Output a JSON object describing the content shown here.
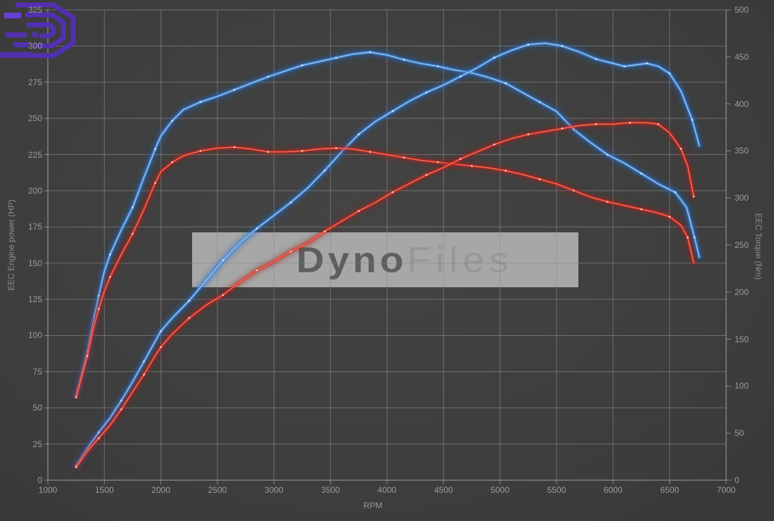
{
  "chart_data": {
    "type": "line",
    "title": "",
    "x": {
      "label": "RPM",
      "min": 1000,
      "max": 7000,
      "ticks": [
        1000,
        1500,
        2000,
        2500,
        3000,
        3500,
        4000,
        4500,
        5000,
        5500,
        6000,
        6500,
        7000
      ]
    },
    "y_left": {
      "label": "EEC Engine power (HP)",
      "min": 0,
      "max": 325,
      "ticks": [
        0,
        25,
        50,
        75,
        100,
        125,
        150,
        175,
        200,
        225,
        250,
        275,
        300,
        325
      ],
      "gridlines": true
    },
    "y_right": {
      "label": "EEC Torque (Nm)",
      "min": 0,
      "max": 500,
      "ticks": [
        0,
        50,
        100,
        150,
        200,
        250,
        300,
        350,
        400,
        450,
        500
      ],
      "gridlines": false
    },
    "legend_position": "none",
    "series": [
      {
        "name": "power-blue",
        "axis": "left",
        "unit": "HP",
        "color": "#3c87dd",
        "core": "#8fc0f2",
        "glow": "#1d66c4",
        "dot": "#ddeeff",
        "width": 1.0,
        "points": [
          [
            1250,
            10
          ],
          [
            1350,
            22
          ],
          [
            1450,
            33
          ],
          [
            1550,
            43
          ],
          [
            1650,
            55
          ],
          [
            1750,
            68
          ],
          [
            1850,
            82
          ],
          [
            1950,
            96
          ],
          [
            2000,
            103
          ],
          [
            2100,
            112
          ],
          [
            2250,
            124
          ],
          [
            2400,
            138
          ],
          [
            2550,
            152
          ],
          [
            2700,
            164
          ],
          [
            2850,
            174
          ],
          [
            3000,
            183
          ],
          [
            3150,
            192
          ],
          [
            3300,
            202
          ],
          [
            3450,
            214
          ],
          [
            3600,
            227
          ],
          [
            3750,
            239
          ],
          [
            3900,
            248
          ],
          [
            4050,
            255
          ],
          [
            4200,
            262
          ],
          [
            4350,
            268
          ],
          [
            4500,
            273
          ],
          [
            4650,
            279
          ],
          [
            4800,
            285
          ],
          [
            4950,
            292
          ],
          [
            5100,
            297
          ],
          [
            5250,
            301
          ],
          [
            5400,
            302
          ],
          [
            5550,
            300
          ],
          [
            5700,
            296
          ],
          [
            5850,
            291
          ],
          [
            6000,
            288
          ],
          [
            6100,
            286
          ],
          [
            6200,
            287
          ],
          [
            6300,
            288
          ],
          [
            6400,
            286
          ],
          [
            6500,
            281
          ],
          [
            6600,
            269
          ],
          [
            6700,
            249
          ],
          [
            6763,
            231
          ]
        ]
      },
      {
        "name": "torque-blue",
        "axis": "right",
        "unit": "Nm",
        "color": "#3c87dd",
        "core": "#8fc0f2",
        "glow": "#1d66c4",
        "dot": "#ddeeff",
        "width": 1.0,
        "points": [
          [
            1250,
            90
          ],
          [
            1300,
            113
          ],
          [
            1350,
            137
          ],
          [
            1400,
            168
          ],
          [
            1450,
            196
          ],
          [
            1500,
            222
          ],
          [
            1550,
            240
          ],
          [
            1650,
            266
          ],
          [
            1750,
            290
          ],
          [
            1850,
            322
          ],
          [
            1950,
            352
          ],
          [
            2000,
            366
          ],
          [
            2100,
            382
          ],
          [
            2200,
            394
          ],
          [
            2350,
            402
          ],
          [
            2500,
            408
          ],
          [
            2650,
            415
          ],
          [
            2800,
            422
          ],
          [
            2950,
            429
          ],
          [
            3100,
            435
          ],
          [
            3250,
            441
          ],
          [
            3400,
            445
          ],
          [
            3550,
            449
          ],
          [
            3700,
            453
          ],
          [
            3850,
            455
          ],
          [
            4000,
            452
          ],
          [
            4150,
            447
          ],
          [
            4300,
            443
          ],
          [
            4450,
            440
          ],
          [
            4600,
            436
          ],
          [
            4750,
            433
          ],
          [
            4900,
            428
          ],
          [
            5050,
            422
          ],
          [
            5200,
            412
          ],
          [
            5350,
            402
          ],
          [
            5500,
            392
          ],
          [
            5650,
            373
          ],
          [
            5800,
            359
          ],
          [
            5950,
            346
          ],
          [
            6100,
            337
          ],
          [
            6250,
            326
          ],
          [
            6400,
            315
          ],
          [
            6550,
            306
          ],
          [
            6650,
            290
          ],
          [
            6720,
            258
          ],
          [
            6763,
            237
          ]
        ]
      },
      {
        "name": "power-red",
        "axis": "left",
        "unit": "HP",
        "color": "#cf2b22",
        "core": "#ff6a55",
        "glow": "#a51a12",
        "dot": "#ffd4cc",
        "width": 0.85,
        "points": [
          [
            1250,
            9
          ],
          [
            1350,
            20
          ],
          [
            1450,
            29
          ],
          [
            1550,
            38
          ],
          [
            1650,
            49
          ],
          [
            1750,
            61
          ],
          [
            1850,
            73
          ],
          [
            1950,
            86
          ],
          [
            2000,
            92
          ],
          [
            2100,
            101
          ],
          [
            2250,
            112
          ],
          [
            2400,
            121
          ],
          [
            2550,
            128
          ],
          [
            2700,
            137
          ],
          [
            2850,
            145
          ],
          [
            3000,
            151
          ],
          [
            3150,
            158
          ],
          [
            3300,
            164
          ],
          [
            3450,
            172
          ],
          [
            3600,
            179
          ],
          [
            3750,
            186
          ],
          [
            3900,
            192
          ],
          [
            4050,
            199
          ],
          [
            4200,
            205
          ],
          [
            4350,
            211
          ],
          [
            4500,
            216
          ],
          [
            4650,
            222
          ],
          [
            4800,
            227
          ],
          [
            4950,
            232
          ],
          [
            5100,
            236
          ],
          [
            5250,
            239
          ],
          [
            5400,
            241
          ],
          [
            5550,
            243
          ],
          [
            5700,
            245
          ],
          [
            5850,
            246
          ],
          [
            6000,
            246
          ],
          [
            6150,
            247
          ],
          [
            6300,
            247
          ],
          [
            6400,
            246
          ],
          [
            6500,
            240
          ],
          [
            6600,
            229
          ],
          [
            6660,
            217
          ],
          [
            6713,
            196
          ]
        ]
      },
      {
        "name": "torque-red",
        "axis": "right",
        "unit": "Nm",
        "color": "#cf2b22",
        "core": "#ff6a55",
        "glow": "#a51a12",
        "dot": "#ffd4cc",
        "width": 0.85,
        "points": [
          [
            1250,
            88
          ],
          [
            1300,
            110
          ],
          [
            1350,
            132
          ],
          [
            1400,
            160
          ],
          [
            1450,
            182
          ],
          [
            1500,
            201
          ],
          [
            1550,
            216
          ],
          [
            1650,
            240
          ],
          [
            1750,
            262
          ],
          [
            1850,
            288
          ],
          [
            1950,
            316
          ],
          [
            2000,
            328
          ],
          [
            2100,
            338
          ],
          [
            2200,
            345
          ],
          [
            2350,
            350
          ],
          [
            2500,
            353
          ],
          [
            2650,
            354
          ],
          [
            2800,
            352
          ],
          [
            2950,
            349
          ],
          [
            3100,
            349
          ],
          [
            3250,
            350
          ],
          [
            3400,
            352
          ],
          [
            3550,
            353
          ],
          [
            3700,
            352
          ],
          [
            3850,
            349
          ],
          [
            4000,
            346
          ],
          [
            4150,
            343
          ],
          [
            4300,
            340
          ],
          [
            4450,
            338
          ],
          [
            4600,
            336
          ],
          [
            4750,
            334
          ],
          [
            4900,
            332
          ],
          [
            5050,
            329
          ],
          [
            5200,
            325
          ],
          [
            5350,
            320
          ],
          [
            5500,
            315
          ],
          [
            5650,
            308
          ],
          [
            5800,
            301
          ],
          [
            5950,
            296
          ],
          [
            6100,
            292
          ],
          [
            6250,
            288
          ],
          [
            6400,
            284
          ],
          [
            6500,
            280
          ],
          [
            6600,
            271
          ],
          [
            6660,
            258
          ],
          [
            6713,
            231
          ]
        ]
      }
    ],
    "watermark": {
      "text_bold": "Dyno",
      "text_light": "Files",
      "logo_color": "#5230b0",
      "logo_color_bright": "#6a3fd8",
      "box_color": "#c0c0c0"
    },
    "colors": {
      "background": "#3c3c3c",
      "grid": "#8c8c8c",
      "tick_text": "#9c9c9c",
      "blue_accent": "#3c87dd",
      "red_accent": "#cf2b22"
    }
  }
}
